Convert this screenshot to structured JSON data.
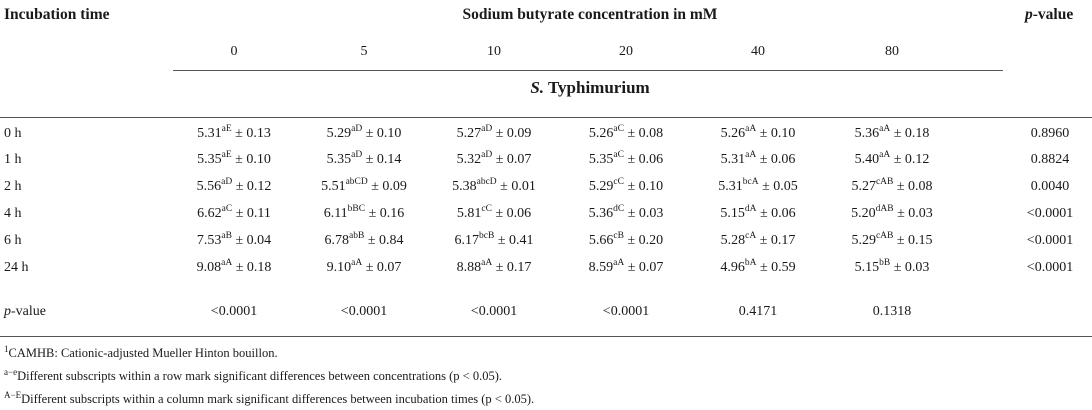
{
  "headers": {
    "incubation_time": "Incubation time",
    "concentration_title": "Sodium butyrate concentration in mM",
    "p_value": "-value",
    "p_value_prefix": "p",
    "concentrations": [
      "0",
      "5",
      "10",
      "20",
      "40",
      "80"
    ]
  },
  "organism": {
    "abbrev": "S.",
    "name": " Typhimurium"
  },
  "rows": [
    {
      "time": "0 h",
      "p": "0.8960",
      "cells": [
        {
          "v": "5.31",
          "s": "aE",
          "e": " ± 0.13"
        },
        {
          "v": "5.29",
          "s": "aD",
          "e": " ± 0.10"
        },
        {
          "v": "5.27",
          "s": "aD",
          "e": " ± 0.09"
        },
        {
          "v": "5.26",
          "s": "aC",
          "e": " ± 0.08"
        },
        {
          "v": "5.26",
          "s": "aA",
          "e": " ± 0.10"
        },
        {
          "v": "5.36",
          "s": "aA",
          "e": " ± 0.18"
        }
      ]
    },
    {
      "time": "1 h",
      "p": "0.8824",
      "cells": [
        {
          "v": "5.35",
          "s": "aE",
          "e": " ± 0.10"
        },
        {
          "v": "5.35",
          "s": "aD",
          "e": " ± 0.14"
        },
        {
          "v": "5.32",
          "s": "aD",
          "e": " ± 0.07"
        },
        {
          "v": "5.35",
          "s": "aC",
          "e": " ± 0.06"
        },
        {
          "v": "5.31",
          "s": "aA",
          "e": " ± 0.06"
        },
        {
          "v": "5.40",
          "s": "aA",
          "e": " ± 0.12"
        }
      ]
    },
    {
      "time": "2 h",
      "p": "0.0040",
      "cells": [
        {
          "v": "5.56",
          "s": "aD",
          "e": " ± 0.12"
        },
        {
          "v": "5.51",
          "s": "abCD",
          "e": " ± 0.09"
        },
        {
          "v": "5.38",
          "s": "abcD",
          "e": " ± 0.01"
        },
        {
          "v": "5.29",
          "s": "cC",
          "e": " ± 0.10"
        },
        {
          "v": "5.31",
          "s": "bcA",
          "e": " ± 0.05"
        },
        {
          "v": "5.27",
          "s": "cAB",
          "e": " ± 0.08"
        }
      ]
    },
    {
      "time": "4 h",
      "p": "<0.0001",
      "cells": [
        {
          "v": "6.62",
          "s": "aC",
          "e": " ± 0.11"
        },
        {
          "v": "6.11",
          "s": "bBC",
          "e": " ± 0.16"
        },
        {
          "v": "5.81",
          "s": "cC",
          "e": " ± 0.06"
        },
        {
          "v": "5.36",
          "s": "dC",
          "e": " ± 0.03"
        },
        {
          "v": "5.15",
          "s": "dA",
          "e": " ± 0.06"
        },
        {
          "v": "5.20",
          "s": "dAB",
          "e": " ± 0.03"
        }
      ]
    },
    {
      "time": "6 h",
      "p": "<0.0001",
      "cells": [
        {
          "v": "7.53",
          "s": "aB",
          "e": " ± 0.04"
        },
        {
          "v": "6.78",
          "s": "abB",
          "e": " ± 0.84"
        },
        {
          "v": "6.17",
          "s": "bcB",
          "e": " ± 0.41"
        },
        {
          "v": "5.66",
          "s": "cB",
          "e": " ± 0.20"
        },
        {
          "v": "5.28",
          "s": "cA",
          "e": " ± 0.17"
        },
        {
          "v": "5.29",
          "s": "cAB",
          "e": " ± 0.15"
        }
      ]
    },
    {
      "time": "24 h",
      "p": "<0.0001",
      "cells": [
        {
          "v": "9.08",
          "s": "aA",
          "e": " ± 0.18"
        },
        {
          "v": "9.10",
          "s": "aA",
          "e": " ± 0.07"
        },
        {
          "v": "8.88",
          "s": "aA",
          "e": " ± 0.17"
        },
        {
          "v": "8.59",
          "s": "aA",
          "e": " ± 0.07"
        },
        {
          "v": "4.96",
          "s": "bA",
          "e": " ± 0.59"
        },
        {
          "v": "5.15",
          "s": "bB",
          "e": " ± 0.03"
        }
      ]
    }
  ],
  "pvalue_row": {
    "prefix": "p",
    "label": "-value",
    "values": [
      "<0.0001",
      "<0.0001",
      "<0.0001",
      "<0.0001",
      "0.4171",
      "0.1318"
    ]
  },
  "footnotes": [
    {
      "mark": "1",
      "text": "CAMHB: Cationic-adjusted Mueller Hinton bouillon."
    },
    {
      "mark": "a−e",
      "text": "Different subscripts within a row mark significant differences between concentrations (p < 0.05)."
    },
    {
      "mark": "A−E",
      "text": "Different subscripts within a column mark significant differences between incubation times (p < 0.05)."
    }
  ]
}
